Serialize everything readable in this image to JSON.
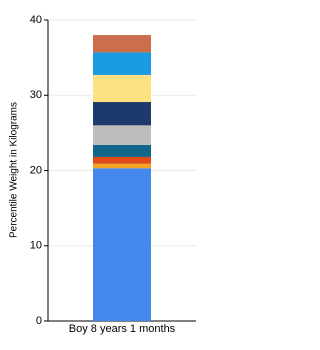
{
  "chart_data": {
    "type": "stacked-bar",
    "y_label": "Percentile Weight in Kilograms",
    "categories": [
      "Boy 8 years 1 months"
    ],
    "series": [
      {
        "color": "#4488ee",
        "values": [
          20.3
        ]
      },
      {
        "color": "#f4a623",
        "values": [
          0.6
        ]
      },
      {
        "color": "#e04a16",
        "values": [
          0.9
        ]
      },
      {
        "color": "#11668a",
        "values": [
          1.6
        ]
      },
      {
        "color": "#bdbdbd",
        "values": [
          2.6
        ]
      },
      {
        "color": "#1c3a6b",
        "values": [
          3.1
        ]
      },
      {
        "color": "#fde282",
        "values": [
          3.6
        ]
      },
      {
        "color": "#1a9ae0",
        "values": [
          3.0
        ]
      },
      {
        "color": "#cc6e4e",
        "values": [
          2.3
        ]
      }
    ],
    "ylim": [
      0,
      40
    ],
    "yticks": [
      0,
      10,
      20,
      30,
      40
    ],
    "grid": true
  }
}
